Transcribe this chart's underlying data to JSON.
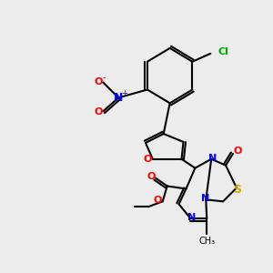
{
  "background_color": "#ececec",
  "colors": {
    "N": "#0000ff",
    "O": "#ff0000",
    "S": "#ccaa00",
    "Cl": "#00aa00",
    "C": "#000000"
  },
  "figsize": [
    3.0,
    3.0
  ],
  "dpi": 100
}
